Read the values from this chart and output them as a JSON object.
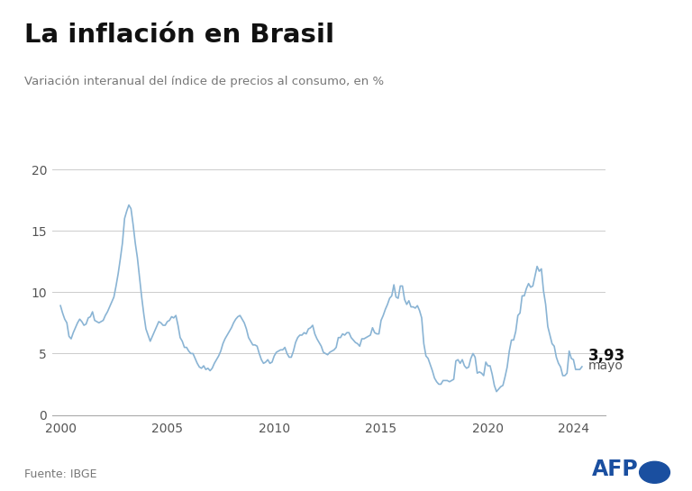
{
  "title": "La inflación en Brasil",
  "subtitle": "Variación interanual del índice de precios al consumo, en %",
  "source": "Fuente: IBGE",
  "annotation_value": "3,93",
  "annotation_label": "mayo",
  "line_color": "#8AB4D4",
  "background_color": "#FFFFFF",
  "ylim": [
    0,
    20
  ],
  "yticks": [
    0,
    5,
    10,
    15,
    20
  ],
  "xticks": [
    2000,
    2005,
    2010,
    2015,
    2020,
    2024
  ],
  "top_bar_color": "#111111",
  "afp_color": "#1a4fa0",
  "data": [
    [
      2000.0,
      8.9
    ],
    [
      2000.1,
      8.3
    ],
    [
      2000.2,
      7.8
    ],
    [
      2000.3,
      7.5
    ],
    [
      2000.4,
      6.4
    ],
    [
      2000.5,
      6.2
    ],
    [
      2000.6,
      6.7
    ],
    [
      2000.7,
      7.1
    ],
    [
      2000.8,
      7.5
    ],
    [
      2000.9,
      7.8
    ],
    [
      2001.0,
      7.6
    ],
    [
      2001.1,
      7.3
    ],
    [
      2001.2,
      7.4
    ],
    [
      2001.3,
      7.9
    ],
    [
      2001.4,
      8.0
    ],
    [
      2001.5,
      8.4
    ],
    [
      2001.6,
      7.7
    ],
    [
      2001.7,
      7.6
    ],
    [
      2001.8,
      7.5
    ],
    [
      2001.9,
      7.6
    ],
    [
      2002.0,
      7.7
    ],
    [
      2002.1,
      8.1
    ],
    [
      2002.2,
      8.4
    ],
    [
      2002.3,
      8.8
    ],
    [
      2002.4,
      9.2
    ],
    [
      2002.5,
      9.6
    ],
    [
      2002.6,
      10.5
    ],
    [
      2002.7,
      11.5
    ],
    [
      2002.8,
      12.7
    ],
    [
      2002.9,
      14.0
    ],
    [
      2003.0,
      16.0
    ],
    [
      2003.1,
      16.6
    ],
    [
      2003.2,
      17.1
    ],
    [
      2003.3,
      16.8
    ],
    [
      2003.4,
      15.5
    ],
    [
      2003.5,
      14.0
    ],
    [
      2003.6,
      12.8
    ],
    [
      2003.7,
      11.2
    ],
    [
      2003.8,
      9.6
    ],
    [
      2003.9,
      8.2
    ],
    [
      2004.0,
      7.0
    ],
    [
      2004.1,
      6.5
    ],
    [
      2004.2,
      6.0
    ],
    [
      2004.3,
      6.4
    ],
    [
      2004.4,
      6.8
    ],
    [
      2004.5,
      7.2
    ],
    [
      2004.6,
      7.6
    ],
    [
      2004.7,
      7.5
    ],
    [
      2004.8,
      7.3
    ],
    [
      2004.9,
      7.3
    ],
    [
      2005.0,
      7.6
    ],
    [
      2005.1,
      7.7
    ],
    [
      2005.2,
      8.0
    ],
    [
      2005.3,
      7.9
    ],
    [
      2005.4,
      8.1
    ],
    [
      2005.5,
      7.3
    ],
    [
      2005.6,
      6.3
    ],
    [
      2005.7,
      6.0
    ],
    [
      2005.8,
      5.5
    ],
    [
      2005.9,
      5.5
    ],
    [
      2006.0,
      5.2
    ],
    [
      2006.1,
      5.0
    ],
    [
      2006.2,
      5.0
    ],
    [
      2006.3,
      4.6
    ],
    [
      2006.4,
      4.2
    ],
    [
      2006.5,
      3.9
    ],
    [
      2006.6,
      3.8
    ],
    [
      2006.7,
      4.0
    ],
    [
      2006.8,
      3.7
    ],
    [
      2006.9,
      3.8
    ],
    [
      2007.0,
      3.6
    ],
    [
      2007.1,
      3.8
    ],
    [
      2007.2,
      4.2
    ],
    [
      2007.3,
      4.5
    ],
    [
      2007.4,
      4.8
    ],
    [
      2007.5,
      5.2
    ],
    [
      2007.6,
      5.8
    ],
    [
      2007.7,
      6.2
    ],
    [
      2007.8,
      6.5
    ],
    [
      2007.9,
      6.8
    ],
    [
      2008.0,
      7.1
    ],
    [
      2008.1,
      7.5
    ],
    [
      2008.2,
      7.8
    ],
    [
      2008.3,
      8.0
    ],
    [
      2008.4,
      8.1
    ],
    [
      2008.5,
      7.8
    ],
    [
      2008.6,
      7.5
    ],
    [
      2008.7,
      7.0
    ],
    [
      2008.8,
      6.3
    ],
    [
      2008.9,
      6.0
    ],
    [
      2009.0,
      5.7
    ],
    [
      2009.1,
      5.7
    ],
    [
      2009.2,
      5.6
    ],
    [
      2009.3,
      5.0
    ],
    [
      2009.4,
      4.5
    ],
    [
      2009.5,
      4.2
    ],
    [
      2009.6,
      4.3
    ],
    [
      2009.7,
      4.5
    ],
    [
      2009.8,
      4.2
    ],
    [
      2009.9,
      4.3
    ],
    [
      2010.0,
      4.8
    ],
    [
      2010.1,
      5.1
    ],
    [
      2010.2,
      5.2
    ],
    [
      2010.3,
      5.3
    ],
    [
      2010.4,
      5.3
    ],
    [
      2010.5,
      5.5
    ],
    [
      2010.6,
      5.0
    ],
    [
      2010.7,
      4.7
    ],
    [
      2010.8,
      4.7
    ],
    [
      2010.9,
      5.2
    ],
    [
      2011.0,
      5.9
    ],
    [
      2011.1,
      6.3
    ],
    [
      2011.2,
      6.5
    ],
    [
      2011.3,
      6.5
    ],
    [
      2011.4,
      6.7
    ],
    [
      2011.5,
      6.6
    ],
    [
      2011.6,
      7.0
    ],
    [
      2011.7,
      7.1
    ],
    [
      2011.8,
      7.3
    ],
    [
      2011.9,
      6.6
    ],
    [
      2012.0,
      6.2
    ],
    [
      2012.1,
      5.9
    ],
    [
      2012.2,
      5.6
    ],
    [
      2012.3,
      5.1
    ],
    [
      2012.4,
      5.0
    ],
    [
      2012.5,
      4.9
    ],
    [
      2012.6,
      5.1
    ],
    [
      2012.7,
      5.2
    ],
    [
      2012.8,
      5.3
    ],
    [
      2012.9,
      5.5
    ],
    [
      2013.0,
      6.3
    ],
    [
      2013.1,
      6.3
    ],
    [
      2013.2,
      6.6
    ],
    [
      2013.3,
      6.5
    ],
    [
      2013.4,
      6.7
    ],
    [
      2013.5,
      6.7
    ],
    [
      2013.6,
      6.3
    ],
    [
      2013.7,
      6.1
    ],
    [
      2013.8,
      5.9
    ],
    [
      2013.9,
      5.8
    ],
    [
      2014.0,
      5.6
    ],
    [
      2014.1,
      6.2
    ],
    [
      2014.2,
      6.2
    ],
    [
      2014.3,
      6.3
    ],
    [
      2014.4,
      6.4
    ],
    [
      2014.5,
      6.5
    ],
    [
      2014.6,
      7.1
    ],
    [
      2014.7,
      6.7
    ],
    [
      2014.8,
      6.6
    ],
    [
      2014.9,
      6.6
    ],
    [
      2015.0,
      7.7
    ],
    [
      2015.1,
      8.1
    ],
    [
      2015.2,
      8.6
    ],
    [
      2015.3,
      9.0
    ],
    [
      2015.4,
      9.5
    ],
    [
      2015.5,
      9.7
    ],
    [
      2015.6,
      10.6
    ],
    [
      2015.7,
      9.6
    ],
    [
      2015.8,
      9.5
    ],
    [
      2015.9,
      10.5
    ],
    [
      2016.0,
      10.5
    ],
    [
      2016.1,
      9.4
    ],
    [
      2016.2,
      9.0
    ],
    [
      2016.3,
      9.3
    ],
    [
      2016.4,
      8.8
    ],
    [
      2016.5,
      8.8
    ],
    [
      2016.6,
      8.7
    ],
    [
      2016.7,
      8.9
    ],
    [
      2016.8,
      8.5
    ],
    [
      2016.9,
      7.9
    ],
    [
      2017.0,
      5.8
    ],
    [
      2017.1,
      4.8
    ],
    [
      2017.2,
      4.6
    ],
    [
      2017.3,
      4.1
    ],
    [
      2017.4,
      3.6
    ],
    [
      2017.5,
      3.0
    ],
    [
      2017.6,
      2.7
    ],
    [
      2017.7,
      2.5
    ],
    [
      2017.8,
      2.5
    ],
    [
      2017.9,
      2.8
    ],
    [
      2018.0,
      2.8
    ],
    [
      2018.1,
      2.8
    ],
    [
      2018.2,
      2.7
    ],
    [
      2018.3,
      2.8
    ],
    [
      2018.4,
      2.9
    ],
    [
      2018.5,
      4.4
    ],
    [
      2018.6,
      4.5
    ],
    [
      2018.7,
      4.2
    ],
    [
      2018.8,
      4.5
    ],
    [
      2018.9,
      4.0
    ],
    [
      2019.0,
      3.8
    ],
    [
      2019.1,
      3.9
    ],
    [
      2019.2,
      4.6
    ],
    [
      2019.3,
      5.0
    ],
    [
      2019.4,
      4.7
    ],
    [
      2019.5,
      3.4
    ],
    [
      2019.6,
      3.5
    ],
    [
      2019.7,
      3.4
    ],
    [
      2019.8,
      3.2
    ],
    [
      2019.9,
      4.3
    ],
    [
      2020.0,
      4.0
    ],
    [
      2020.1,
      4.0
    ],
    [
      2020.2,
      3.3
    ],
    [
      2020.3,
      2.4
    ],
    [
      2020.4,
      1.9
    ],
    [
      2020.5,
      2.1
    ],
    [
      2020.6,
      2.3
    ],
    [
      2020.7,
      2.4
    ],
    [
      2020.8,
      3.1
    ],
    [
      2020.9,
      3.9
    ],
    [
      2021.0,
      5.2
    ],
    [
      2021.1,
      6.1
    ],
    [
      2021.2,
      6.1
    ],
    [
      2021.3,
      6.8
    ],
    [
      2021.4,
      8.1
    ],
    [
      2021.5,
      8.3
    ],
    [
      2021.6,
      9.7
    ],
    [
      2021.7,
      9.7
    ],
    [
      2021.8,
      10.3
    ],
    [
      2021.9,
      10.7
    ],
    [
      2022.0,
      10.4
    ],
    [
      2022.1,
      10.5
    ],
    [
      2022.2,
      11.3
    ],
    [
      2022.3,
      12.1
    ],
    [
      2022.4,
      11.7
    ],
    [
      2022.5,
      11.9
    ],
    [
      2022.6,
      10.1
    ],
    [
      2022.7,
      9.0
    ],
    [
      2022.8,
      7.2
    ],
    [
      2022.9,
      6.5
    ],
    [
      2023.0,
      5.8
    ],
    [
      2023.1,
      5.6
    ],
    [
      2023.2,
      4.7
    ],
    [
      2023.3,
      4.2
    ],
    [
      2023.4,
      3.9
    ],
    [
      2023.5,
      3.2
    ],
    [
      2023.6,
      3.2
    ],
    [
      2023.7,
      3.4
    ],
    [
      2023.8,
      5.2
    ],
    [
      2023.9,
      4.6
    ],
    [
      2024.0,
      4.5
    ],
    [
      2024.1,
      3.7
    ],
    [
      2024.2,
      3.7
    ],
    [
      2024.3,
      3.7
    ],
    [
      2024.4,
      3.93
    ]
  ]
}
